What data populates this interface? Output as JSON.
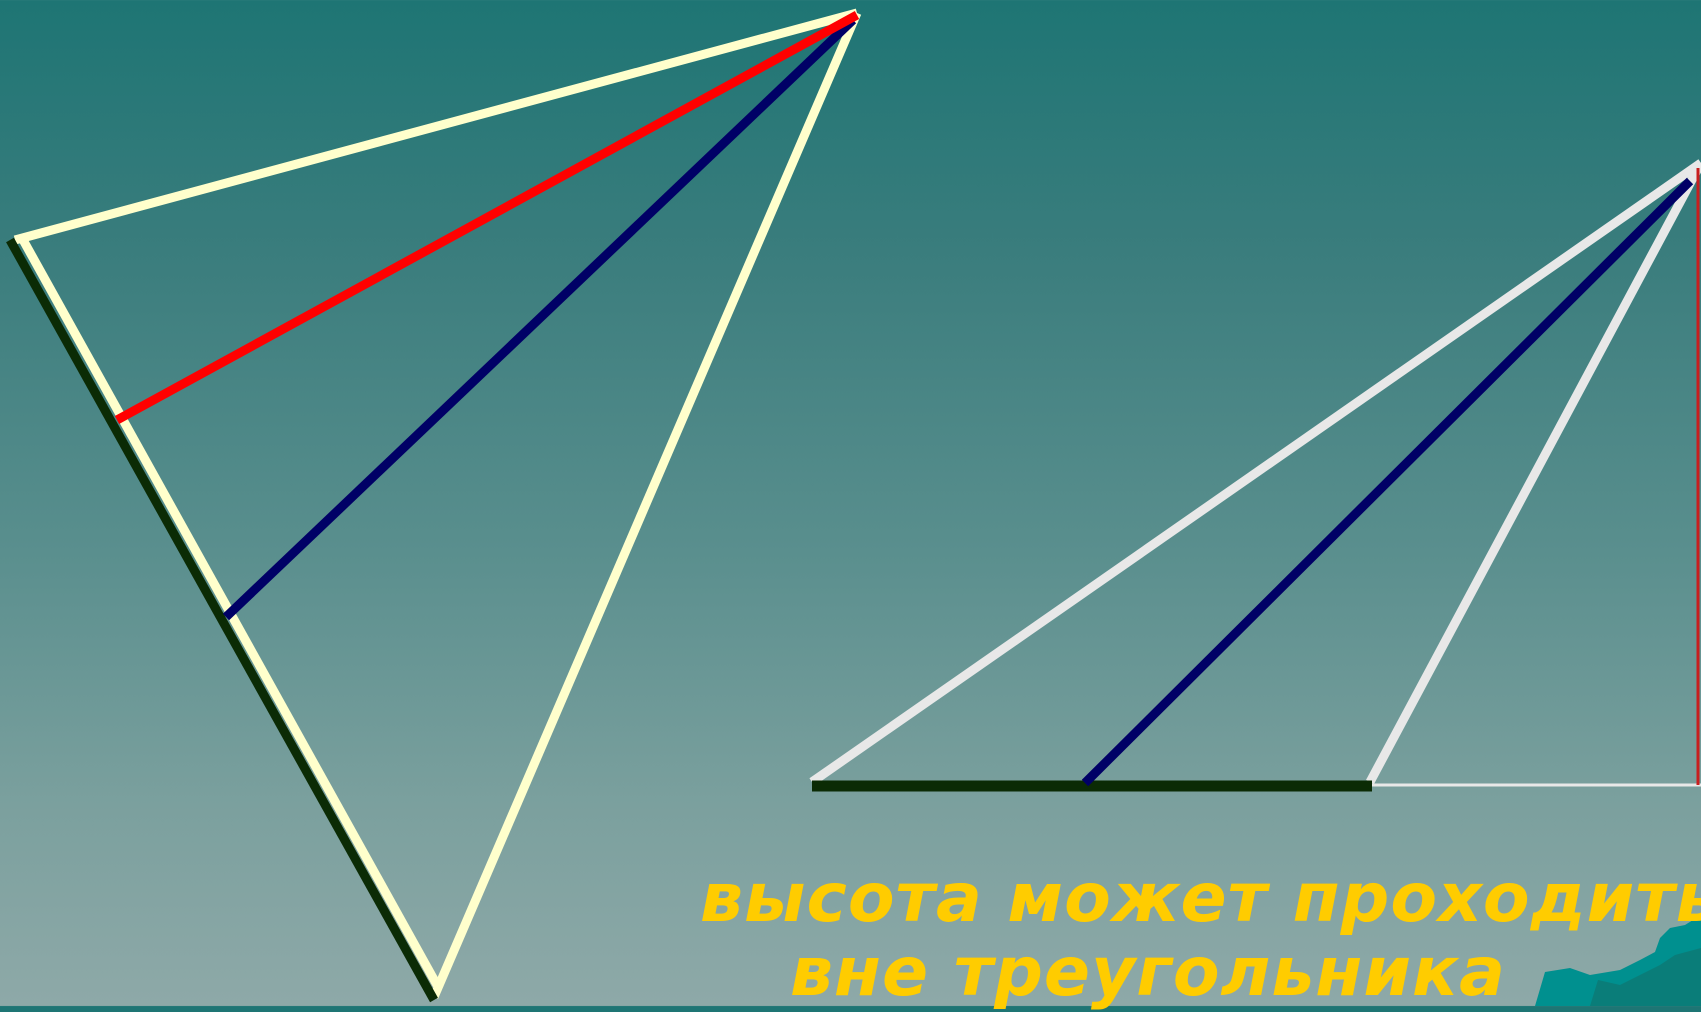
{
  "caption": {
    "line1": "высота может проходить",
    "line2": "вне треугольника"
  },
  "colors": {
    "triangle_left": "#ffffcc",
    "triangle_right": "#e8e8e8",
    "side_highlight": "#0b2b05",
    "altitude": "#ff0000",
    "bisector": "#000066",
    "median": "#000066",
    "caption": "#ffcc00",
    "decoration": "#00908f"
  }
}
